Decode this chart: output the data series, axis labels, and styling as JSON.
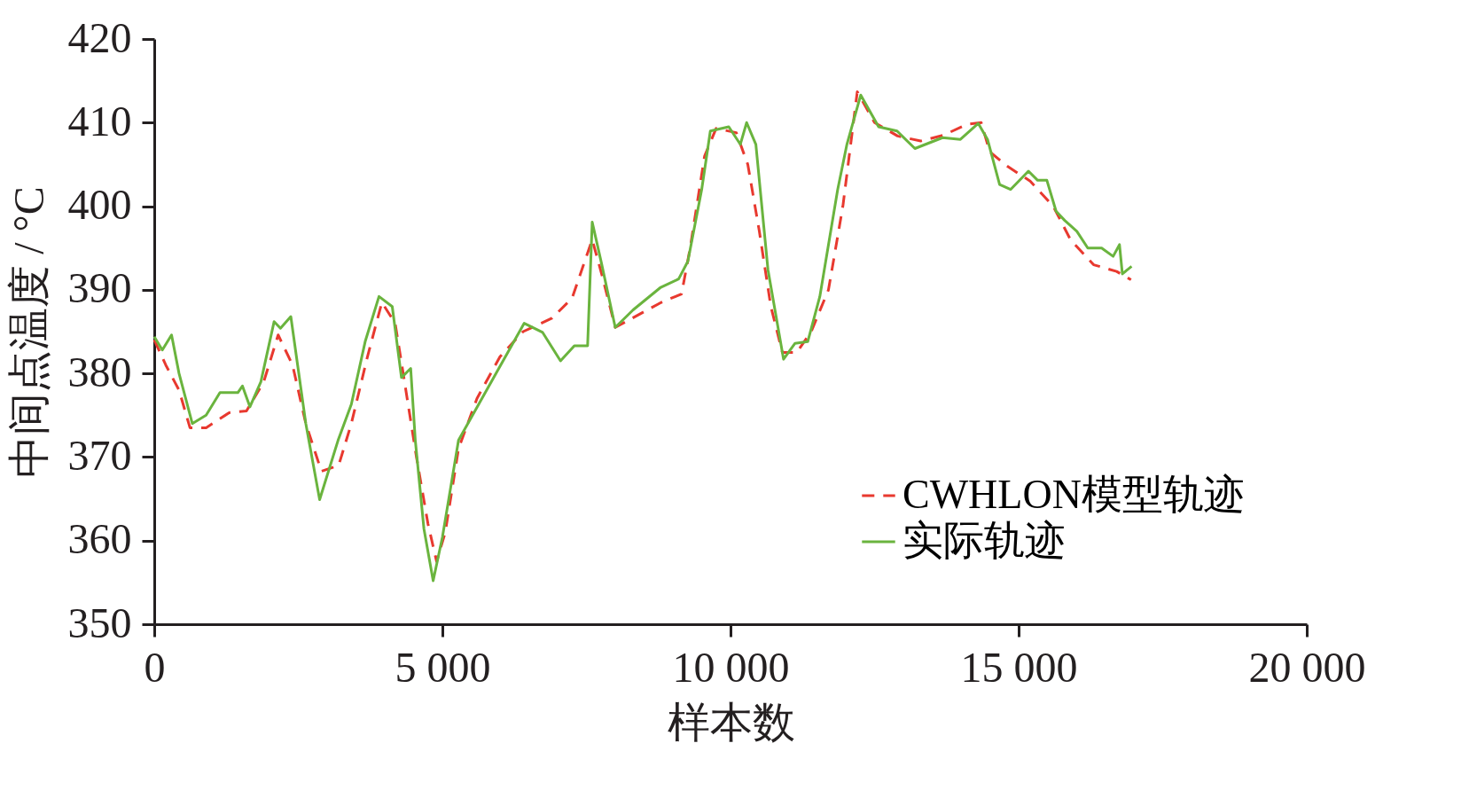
{
  "chart_data": {
    "type": "line",
    "xlabel": "样本数",
    "ylabel": "中间点温度 / °C",
    "xlim": [
      0,
      20000
    ],
    "xticks": [
      0,
      {
        "value": 5000,
        "label": "5 000"
      },
      {
        "value": 10000,
        "label": "10 000"
      },
      {
        "value": 15000,
        "label": "15 000"
      },
      {
        "value": 20000,
        "label": "20 000"
      }
    ],
    "ylim": [
      350,
      420
    ],
    "yticks": [
      350,
      360,
      370,
      380,
      390,
      400,
      410,
      420
    ],
    "grid": false,
    "legend": "bottom right",
    "series": [
      {
        "name": "CWHLON模型轨迹",
        "color": "#e8392f",
        "line_style": "dashed",
        "x": [
          0,
          200,
          430,
          620,
          900,
          1300,
          1600,
          1900,
          2150,
          2400,
          2630,
          2900,
          3200,
          3420,
          3700,
          3950,
          4180,
          4320,
          4550,
          4750,
          4900,
          5050,
          5280,
          5600,
          6000,
          6400,
          6900,
          7250,
          7450,
          7600,
          7760,
          8000,
          8400,
          8800,
          9150,
          9300,
          9550,
          9750,
          10100,
          10300,
          10500,
          10700,
          10900,
          11150,
          11400,
          11700,
          11950,
          12200,
          12500,
          12900,
          13300,
          13700,
          14100,
          14350,
          14500,
          14800,
          15200,
          15600,
          15900,
          16300,
          16700,
          16950
        ],
        "values": [
          384,
          381,
          378,
          373.5,
          373.5,
          375.3,
          375.5,
          379,
          384.6,
          381,
          374,
          368.3,
          369,
          374,
          382,
          388.5,
          386,
          380,
          370,
          362,
          357.5,
          361,
          371,
          377,
          382,
          385,
          386.6,
          389,
          393,
          396,
          392,
          385.5,
          387,
          388.5,
          389.5,
          395,
          406,
          409.3,
          408.8,
          405,
          397,
          388,
          382.5,
          382.5,
          385,
          390,
          400,
          413.7,
          410,
          408.4,
          407.8,
          408.5,
          409.8,
          410,
          406.5,
          404.8,
          403,
          400,
          396,
          393,
          392.2,
          391.2
        ]
      },
      {
        "name": "实际轨迹",
        "color": "#6ab43e",
        "line_style": "solid",
        "x": [
          0,
          140,
          300,
          430,
          660,
          900,
          1140,
          1450,
          1530,
          1660,
          1850,
          2080,
          2190,
          2370,
          2630,
          2870,
          3190,
          3420,
          3660,
          3900,
          4130,
          4290,
          4450,
          4530,
          4680,
          4840,
          5000,
          5280,
          6420,
          6740,
          7050,
          7290,
          7520,
          7600,
          7760,
          8000,
          8310,
          8790,
          9100,
          9260,
          9500,
          9650,
          9970,
          10170,
          10280,
          10440,
          10650,
          10920,
          11120,
          11340,
          11550,
          11860,
          12020,
          12260,
          12570,
          12890,
          13200,
          13680,
          13990,
          14300,
          14460,
          14670,
          14860,
          15170,
          15330,
          15490,
          15650,
          15800,
          16010,
          16200,
          16440,
          16640,
          16750,
          16800,
          16960
        ],
        "values": [
          384.4,
          382.8,
          384.6,
          380,
          374,
          375,
          377.7,
          377.7,
          378.5,
          376,
          379,
          386.2,
          385.4,
          386.8,
          374,
          364.9,
          372,
          376.3,
          383.8,
          389.2,
          388,
          379.5,
          380.6,
          372,
          361.4,
          355.2,
          360.4,
          372,
          386,
          384.9,
          381.5,
          383.3,
          383.3,
          398.1,
          393.2,
          385.5,
          387.6,
          390.3,
          391.3,
          393.4,
          402,
          409,
          409.5,
          407.4,
          410,
          407.4,
          392.4,
          381.7,
          383.6,
          383.8,
          389.2,
          402,
          407.4,
          413.3,
          409.5,
          409,
          406.9,
          408.2,
          408,
          409.9,
          408,
          402.6,
          402,
          404.2,
          403.1,
          403.1,
          399.4,
          398.3,
          397,
          395,
          395,
          394,
          395.4,
          391.9,
          392.8
        ]
      }
    ]
  }
}
